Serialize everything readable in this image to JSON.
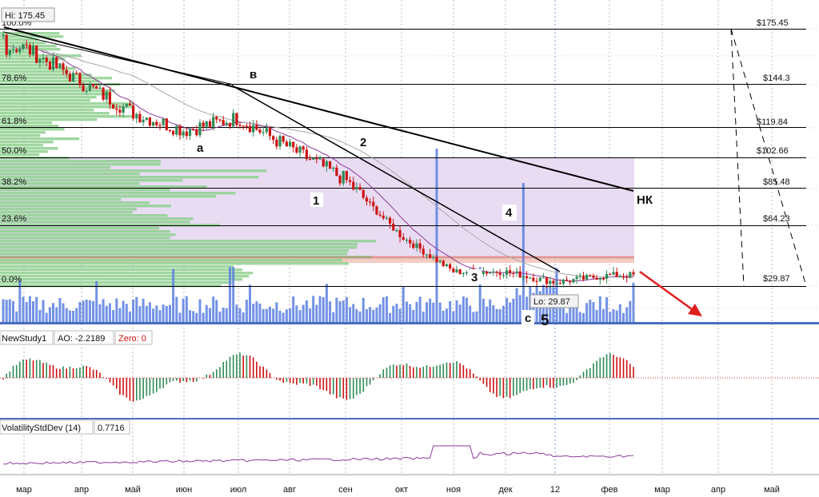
{
  "price_panel": {
    "hi_label": "Hi: 175.45",
    "lo_label": "Lo: 29.87",
    "price_levels": [
      "$175.45",
      "$144.3",
      "$119.84",
      "$102.66",
      "$85.48",
      "$64.23",
      "$29.87"
    ],
    "fib_labels": [
      "100.0%",
      "78.6%",
      "61.8%",
      "50.0%",
      "38.2%",
      "23.6%",
      "0.0%"
    ],
    "wave_labels": [
      "в",
      "a",
      "1",
      "2",
      "3",
      "4",
      "5",
      "с",
      "НК"
    ]
  },
  "ao_panel": {
    "name": "NewStudy1",
    "ao_label": "AO: -2.2189",
    "zero_label": "Zero: 0"
  },
  "vol_panel": {
    "name": "VolatilityStdDev (14)",
    "value": "0.7716"
  },
  "x_axis": {
    "months": [
      "мар",
      "апр",
      "май",
      "июн",
      "июл",
      "авг",
      "сен",
      "окт",
      "ноя",
      "дек",
      "12",
      "фев",
      "мар",
      "апр",
      "май"
    ]
  },
  "colors": {
    "up": "#2e8b57",
    "down": "#cc1111",
    "volume": "#5b7fe0",
    "profile": "#8fd08f",
    "zone": "#e3d3f0",
    "ma": "#8b3a9a",
    "arrow": "#e02020"
  },
  "chart_data": {
    "type": "line",
    "x": [
      "мар",
      "апр",
      "май",
      "июн",
      "июл",
      "авг",
      "сен",
      "окт",
      "ноя",
      "дек",
      "12",
      "фев"
    ],
    "series": [
      {
        "values": [
          165,
          145,
          128,
          118,
          125,
          108,
          90,
          58,
          38,
          38,
          32,
          36
        ]
      }
    ],
    "hi": 175.45,
    "lo": 29.87,
    "price_levels": [
      175.45,
      144.3,
      119.84,
      102.66,
      85.48,
      64.23,
      29.87
    ],
    "ao": {
      "value": -2.2189,
      "zero": 0
    },
    "volatility_stddev_14": 0.7716,
    "grid": true
  }
}
